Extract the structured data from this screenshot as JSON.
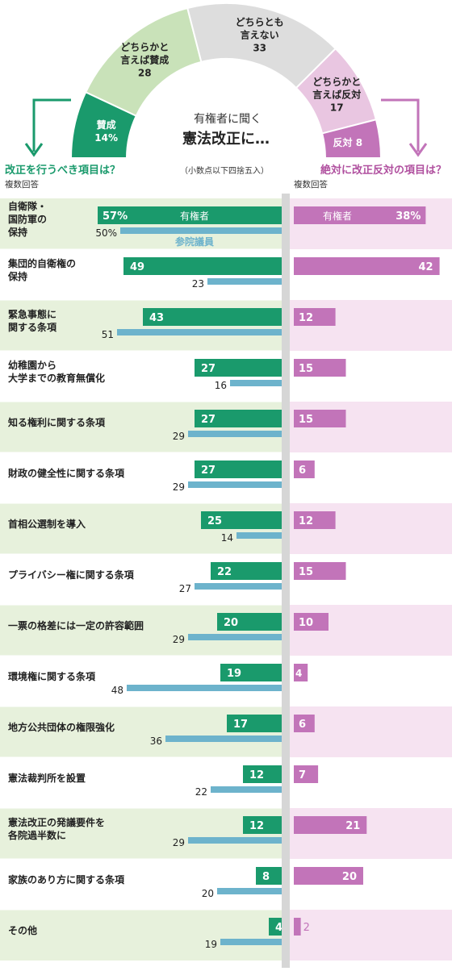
{
  "colors": {
    "green": "#1a9a6c",
    "green_light": "#c9e2b9",
    "blue": "#6db3cc",
    "grey_light": "#dddddd",
    "pink": "#c274b9",
    "pink_light": "#e9c6e1",
    "row_green_bg": "#e7f1dc",
    "row_pink_bg": "#f6e3f1"
  },
  "header": {
    "center_line1": "有権者に聞く",
    "center_line2": "憲法改正に…",
    "rounding_note": "（小数点以下四捨五入）",
    "left_title": "改正を行うべき項目は？",
    "left_sub": "複数回答",
    "right_title": "絶対に改正反対の項目は？",
    "right_sub": "複数回答"
  },
  "legend": {
    "voters_left": "有権者",
    "members": "参院議員",
    "voters_right": "有権者"
  },
  "chart_data": [
    {
      "type": "pie",
      "shape": "semicircle",
      "slices": [
        {
          "label": "賛成",
          "value": 14,
          "value_label": "14%",
          "color": "#1a9a6c"
        },
        {
          "label": "どちらかと言えば賛成",
          "lines": [
            "どちらかと",
            "言えば賛成"
          ],
          "value": 28,
          "value_label": "28",
          "color": "#c9e2b9"
        },
        {
          "label": "どちらとも言えない",
          "lines": [
            "どちらとも",
            "言えない"
          ],
          "value": 33,
          "value_label": "33",
          "color": "#dddddd"
        },
        {
          "label": "どちらかと言えば反対",
          "lines": [
            "どちらかと",
            "言えば反対"
          ],
          "value": 17,
          "value_label": "17",
          "color": "#e9c6e1"
        },
        {
          "label": "反対",
          "value": 8,
          "value_label": "8",
          "color": "#c274b9"
        }
      ]
    },
    {
      "type": "bar",
      "orientation": "horizontal",
      "title": "改正を行うべき項目は？",
      "subtitle": "複数回答",
      "xlim": [
        0,
        60
      ],
      "categories": [
        [
          "自衛隊・",
          "国防軍の",
          "保持"
        ],
        [
          "集団的自衛権の",
          "保持"
        ],
        [
          "緊急事態に",
          "関する条項"
        ],
        [
          "幼稚園から",
          "大学までの教育無償化"
        ],
        [
          "知る権利に関する条項"
        ],
        [
          "財政の健全性に関する条項"
        ],
        [
          "首相公選制を導入"
        ],
        [
          "プライバシー権に関する条項"
        ],
        [
          "一票の格差には一定の許容範囲"
        ],
        [
          "環境権に関する条項"
        ],
        [
          "地方公共団体の権限強化"
        ],
        [
          "憲法裁判所を設置"
        ],
        [
          "憲法改正の発議要件を",
          "各院過半数に"
        ],
        [
          "家族のあり方に関する条項"
        ],
        [
          "その他"
        ]
      ],
      "series": [
        {
          "name": "有権者",
          "color": "#1a9a6c",
          "values": [
            57,
            49,
            43,
            27,
            27,
            27,
            25,
            22,
            20,
            19,
            17,
            12,
            12,
            8,
            4
          ],
          "labels": [
            "57%",
            "49",
            "43",
            "27",
            "27",
            "27",
            "25",
            "22",
            "20",
            "19",
            "17",
            "12",
            "12",
            "8",
            "4"
          ]
        },
        {
          "name": "参院議員",
          "color": "#6db3cc",
          "values": [
            50,
            23,
            51,
            16,
            29,
            29,
            14,
            27,
            29,
            48,
            36,
            22,
            29,
            20,
            19
          ],
          "labels": [
            "50%",
            "23",
            "51",
            "16",
            "29",
            "29",
            "14",
            "27",
            "29",
            "48",
            "36",
            "22",
            "29",
            "20",
            "19"
          ]
        }
      ]
    },
    {
      "type": "bar",
      "orientation": "horizontal",
      "title": "絶対に改正反対の項目は？",
      "subtitle": "複数回答",
      "xlim": [
        0,
        42
      ],
      "series": [
        {
          "name": "有権者",
          "color": "#c274b9",
          "values": [
            38,
            42,
            12,
            15,
            15,
            6,
            12,
            15,
            10,
            4,
            6,
            7,
            21,
            20,
            2
          ],
          "labels": [
            "38%",
            "42",
            "12",
            "15",
            "15",
            "6",
            "12",
            "15",
            "10",
            "4",
            "6",
            "7",
            "21",
            "20",
            "2"
          ]
        }
      ]
    }
  ]
}
